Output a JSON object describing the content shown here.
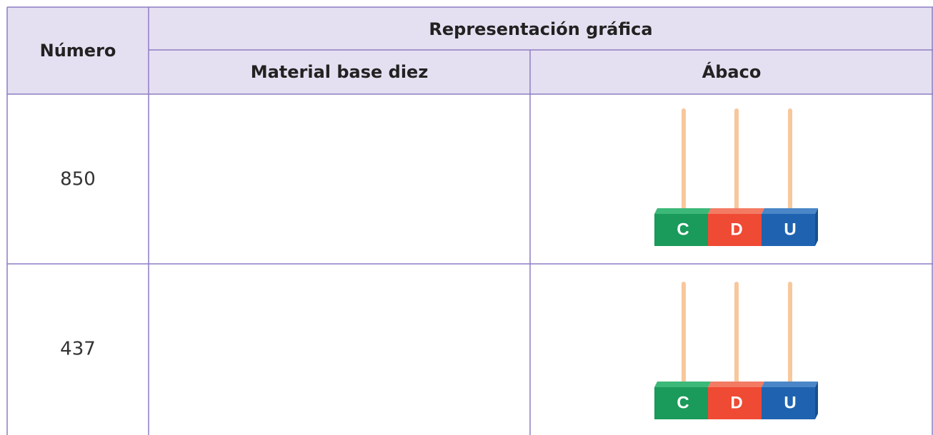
{
  "header": {
    "number_label": "Número",
    "group_label": "Representación gráfica",
    "col_material": "Material base diez",
    "col_abacus": "Ábaco"
  },
  "rows": [
    {
      "number": "850",
      "abacus_labels": [
        "C",
        "D",
        "U"
      ]
    },
    {
      "number": "437",
      "abacus_labels": [
        "C",
        "D",
        "U"
      ]
    }
  ]
}
